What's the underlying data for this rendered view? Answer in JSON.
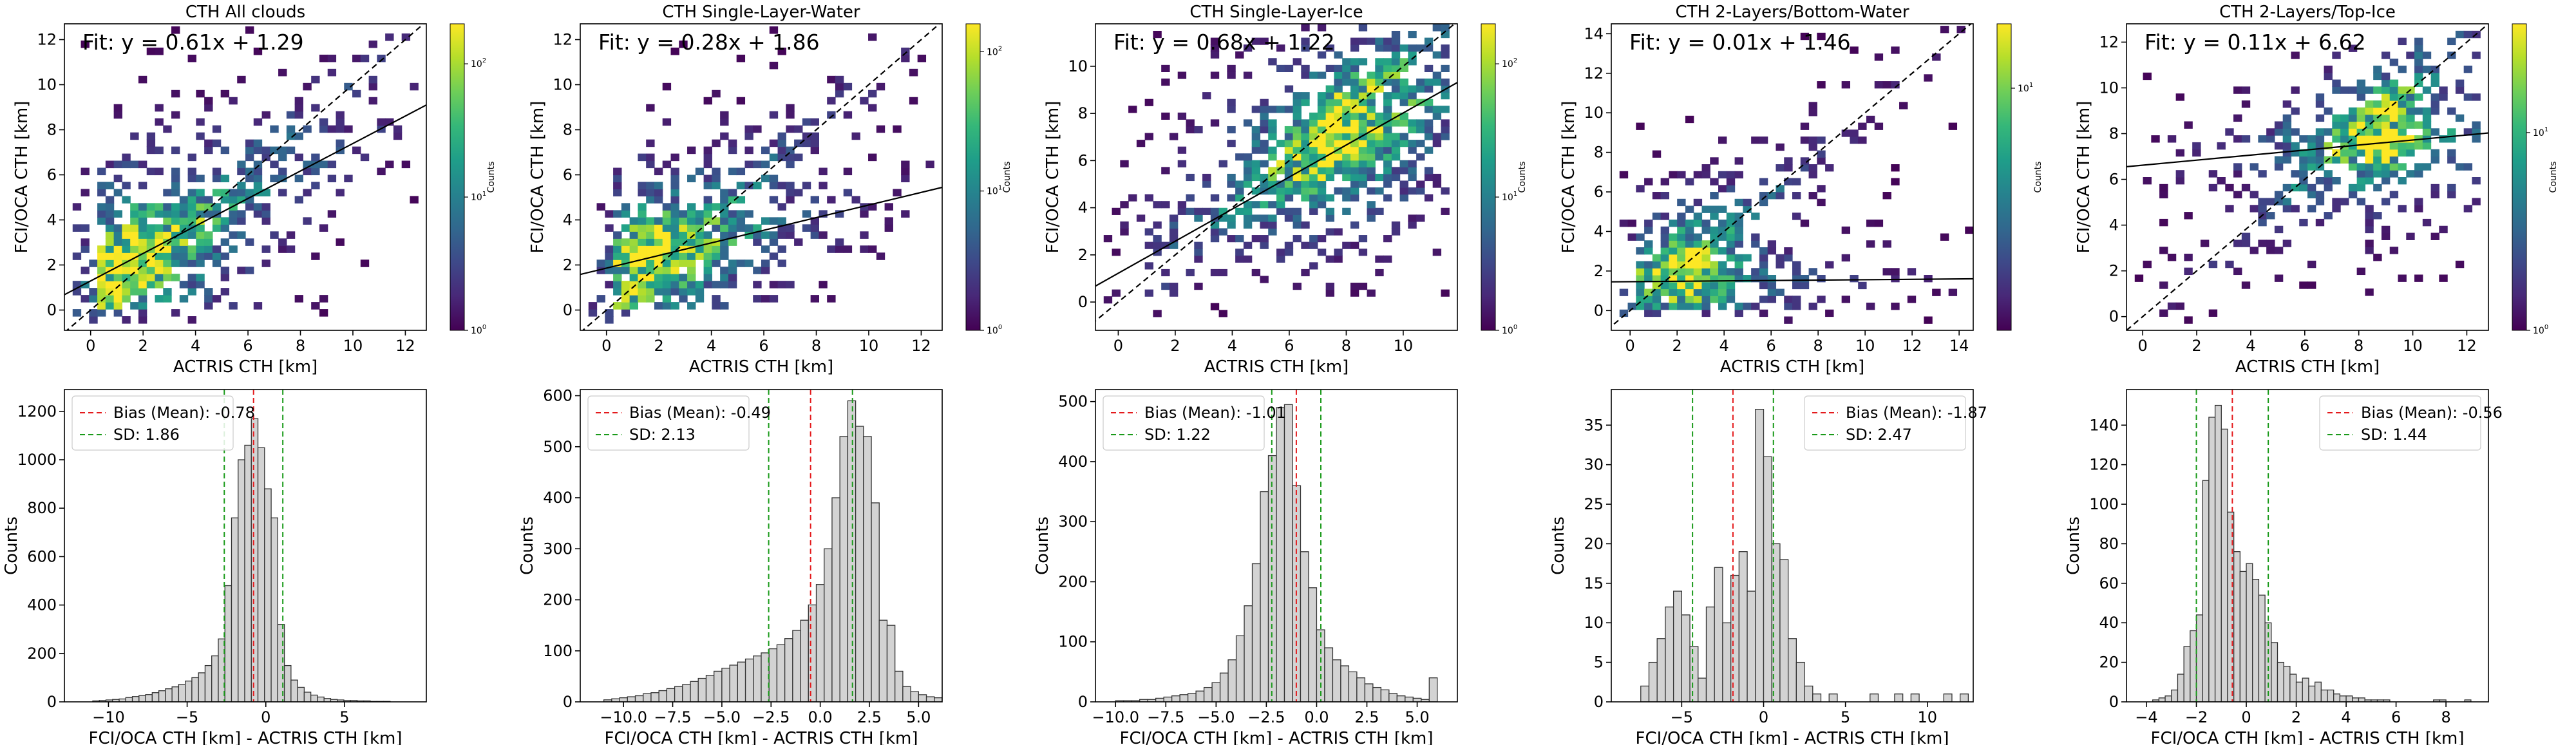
{
  "chart_data": [
    {
      "panel": "scatter",
      "type": "heatmap",
      "title": "CTH All clouds",
      "xlabel": "ACTRIS CTH [km]",
      "ylabel": "FCI/OCA CTH [km]",
      "xlim": [
        -1,
        12.8
      ],
      "ylim": [
        -0.9,
        12.7
      ],
      "xticks": [
        0,
        2,
        4,
        6,
        8,
        10,
        12
      ],
      "yticks": [
        0,
        2,
        4,
        6,
        8,
        10,
        12
      ],
      "fit": {
        "label": "Fit: y = 0.61x + 1.29",
        "slope": 0.61,
        "intercept": 1.29
      },
      "one_to_one_line": true,
      "density_cluster": {
        "x": 1.5,
        "y": 2.2,
        "spread": 2.5
      },
      "colorbar": {
        "label": "Counts",
        "scale": "log",
        "ticks": [
          [
            "10",
            "0"
          ],
          [
            "10",
            "1"
          ],
          [
            "10",
            "2"
          ]
        ],
        "decades": 2.3
      }
    },
    {
      "panel": "scatter",
      "type": "heatmap",
      "title": "CTH Single-Layer-Water",
      "xlabel": "ACTRIS CTH [km]",
      "ylabel": "FCI/OCA CTH [km]",
      "xlim": [
        -1,
        12.8
      ],
      "ylim": [
        -0.9,
        12.7
      ],
      "xticks": [
        0,
        2,
        4,
        6,
        8,
        10,
        12
      ],
      "yticks": [
        0,
        2,
        4,
        6,
        8,
        10,
        12
      ],
      "fit": {
        "label": "Fit: y = 0.28x + 1.86",
        "slope": 0.28,
        "intercept": 1.86
      },
      "one_to_one_line": true,
      "density_cluster": {
        "x": 1.8,
        "y": 2.4,
        "spread": 2.0
      },
      "colorbar": {
        "label": "Counts",
        "scale": "log",
        "ticks": [
          [
            "10",
            "0"
          ],
          [
            "10",
            "1"
          ],
          [
            "10",
            "2"
          ]
        ],
        "decades": 2.2
      }
    },
    {
      "panel": "scatter",
      "type": "heatmap",
      "title": "CTH Single-Layer-Ice",
      "xlabel": "ACTRIS CTH [km]",
      "ylabel": "FCI/OCA CTH [km]",
      "xlim": [
        -0.8,
        11.9
      ],
      "ylim": [
        -1.2,
        11.8
      ],
      "xticks": [
        0,
        2,
        4,
        6,
        8,
        10
      ],
      "yticks": [
        0,
        2,
        4,
        6,
        8,
        10
      ],
      "fit": {
        "label": "Fit: y = 0.68x + 1.22",
        "slope": 0.68,
        "intercept": 1.22
      },
      "one_to_one_line": true,
      "density_cluster": {
        "x": 7.5,
        "y": 6.8,
        "spread": 2.2
      },
      "colorbar": {
        "label": "Counts",
        "scale": "log",
        "ticks": [
          [
            "10",
            "0"
          ],
          [
            "10",
            "1"
          ],
          [
            "10",
            "2"
          ]
        ],
        "decades": 2.3
      }
    },
    {
      "panel": "scatter",
      "type": "heatmap",
      "title": "CTH 2-Layers/Bottom-Water",
      "xlabel": "ACTRIS CTH [km]",
      "ylabel": "FCI/OCA CTH [km]",
      "xlim": [
        -0.8,
        14.6
      ],
      "ylim": [
        -1.0,
        14.5
      ],
      "xticks": [
        0,
        2,
        4,
        6,
        8,
        10,
        12,
        14
      ],
      "yticks": [
        0,
        2,
        4,
        6,
        8,
        10,
        12,
        14
      ],
      "fit": {
        "label": "Fit: y = 0.01x + 1.46",
        "slope": 0.01,
        "intercept": 1.46
      },
      "one_to_one_line": true,
      "density_cluster": {
        "x": 2.0,
        "y": 1.8,
        "spread": 1.8
      },
      "colorbar": {
        "label": "Counts",
        "scale": "log",
        "ticks": [
          [
            "10",
            "1"
          ]
        ],
        "decades": 1.25
      }
    },
    {
      "panel": "scatter",
      "type": "heatmap",
      "title": "CTH 2-Layers/Top-Ice",
      "xlabel": "ACTRIS CTH [km]",
      "ylabel": "FCI/OCA CTH [km]",
      "xlim": [
        -0.6,
        12.8
      ],
      "ylim": [
        -0.6,
        12.8
      ],
      "xticks": [
        0,
        2,
        4,
        6,
        8,
        10,
        12
      ],
      "yticks": [
        0,
        2,
        4,
        6,
        8,
        10,
        12
      ],
      "fit": {
        "label": "Fit: y = 0.11x + 6.62",
        "slope": 0.11,
        "intercept": 6.62
      },
      "one_to_one_line": true,
      "density_cluster": {
        "x": 8.5,
        "y": 7.5,
        "spread": 1.5
      },
      "colorbar": {
        "label": "Counts",
        "scale": "log",
        "ticks": [
          [
            "10",
            "0"
          ],
          [
            "10",
            "1"
          ]
        ],
        "decades": 1.55
      }
    },
    {
      "panel": "histogram",
      "type": "bar",
      "xlabel": "FCI/OCA CTH [km] - ACTRIS CTH [km]",
      "ylabel": "Counts",
      "xlim": [
        -12.8,
        10.2
      ],
      "ylim": [
        0,
        1290
      ],
      "xticks": [
        -10,
        -5,
        0,
        5
      ],
      "yticks": [
        0,
        200,
        400,
        600,
        800,
        1000,
        1200
      ],
      "bias": {
        "label": "Bias (Mean): -0.78",
        "value": -0.78
      },
      "sd": {
        "label": "SD: 1.86",
        "value": 1.86
      },
      "legend_position": "upper left",
      "bin_width": 0.42,
      "bins_start": -11.0,
      "counts": [
        4,
        6,
        8,
        10,
        12,
        18,
        22,
        26,
        30,
        38,
        46,
        54,
        62,
        72,
        86,
        100,
        120,
        150,
        190,
        260,
        480,
        760,
        1000,
        1060,
        1170,
        1050,
        880,
        760,
        320,
        150,
        90,
        60,
        40,
        28,
        20,
        14,
        10,
        8,
        6,
        6,
        4,
        4,
        2,
        2,
        2
      ]
    },
    {
      "panel": "histogram",
      "type": "bar",
      "xlabel": "FCI/OCA CTH [km] - ACTRIS CTH [km]",
      "ylabel": "Counts",
      "xlim": [
        -12.2,
        6.2
      ],
      "ylim": [
        0,
        612
      ],
      "xticks": [
        -10.0,
        -7.5,
        -5.0,
        -2.5,
        0.0,
        2.5,
        5.0
      ],
      "yticks": [
        0,
        100,
        200,
        300,
        400,
        500,
        600
      ],
      "bias": {
        "label": "Bias (Mean): -0.49",
        "value": -0.49
      },
      "sd": {
        "label": "SD: 2.13",
        "value": 2.13
      },
      "legend_position": "upper left",
      "bin_width": 0.4,
      "bins_start": -11.0,
      "counts": [
        4,
        6,
        8,
        10,
        12,
        16,
        18,
        22,
        26,
        30,
        34,
        40,
        46,
        52,
        60,
        66,
        72,
        78,
        84,
        90,
        96,
        104,
        112,
        124,
        140,
        160,
        190,
        230,
        300,
        400,
        520,
        590,
        540,
        520,
        390,
        160,
        150,
        60,
        30,
        20,
        14,
        10,
        8,
        6,
        4
      ]
    },
    {
      "panel": "histogram",
      "type": "bar",
      "xlabel": "FCI/OCA CTH [km] - ACTRIS CTH [km]",
      "ylabel": "Counts",
      "xlim": [
        -11.0,
        7.0
      ],
      "ylim": [
        0,
        520
      ],
      "xticks": [
        -10.0,
        -7.5,
        -5.0,
        -2.5,
        0.0,
        2.5,
        5.0
      ],
      "yticks": [
        0,
        100,
        200,
        300,
        400,
        500
      ],
      "bias": {
        "label": "Bias (Mean): -1.01",
        "value": -1.01
      },
      "sd": {
        "label": "SD: 1.22",
        "value": 1.22
      },
      "legend_position": "upper left",
      "bin_width": 0.4,
      "bins_start": -10.0,
      "counts": [
        2,
        2,
        2,
        4,
        4,
        6,
        8,
        10,
        12,
        14,
        18,
        24,
        32,
        48,
        70,
        110,
        160,
        230,
        350,
        410,
        490,
        495,
        360,
        250,
        190,
        120,
        90,
        70,
        60,
        50,
        40,
        30,
        24,
        20,
        14,
        10,
        8,
        6,
        4,
        40
      ]
    },
    {
      "panel": "histogram",
      "type": "bar",
      "xlabel": "FCI/OCA CTH [km] - ACTRIS CTH [km]",
      "ylabel": "Counts",
      "xlim": [
        -9.3,
        12.8
      ],
      "ylim": [
        0,
        39.5
      ],
      "xticks": [
        -5,
        0,
        5,
        10
      ],
      "yticks": [
        0,
        5,
        10,
        15,
        20,
        25,
        30,
        35
      ],
      "bias": {
        "label": "Bias (Mean): -1.87",
        "value": -1.87
      },
      "sd": {
        "label": "SD: 2.47",
        "value": 2.47
      },
      "legend_position": "upper right",
      "bin_width": 0.5,
      "bins_start": -7.5,
      "counts": [
        2,
        5,
        8,
        12,
        14,
        11,
        7,
        3,
        12,
        17,
        10,
        16,
        19,
        14,
        37,
        31,
        20,
        18,
        8,
        5,
        2,
        1,
        0,
        1,
        0,
        0,
        0,
        0,
        1,
        0,
        0,
        1,
        0,
        1,
        0,
        0,
        0,
        1,
        0,
        1
      ]
    },
    {
      "panel": "histogram",
      "type": "bar",
      "xlabel": "FCI/OCA CTH [km] - ACTRIS CTH [km]",
      "ylabel": "Counts",
      "xlim": [
        -4.8,
        9.7
      ],
      "ylim": [
        0,
        158
      ],
      "xticks": [
        -4,
        -2,
        0,
        2,
        4,
        6,
        8
      ],
      "yticks": [
        0,
        20,
        40,
        60,
        80,
        100,
        120,
        140
      ],
      "bias": {
        "label": "Bias (Mean): -0.56",
        "value": -0.56
      },
      "sd": {
        "label": "SD: 1.44",
        "value": 1.44
      },
      "legend_position": "upper right",
      "bin_width": 0.25,
      "bins_start": -3.75,
      "counts": [
        1,
        2,
        3,
        6,
        14,
        28,
        36,
        44,
        112,
        144,
        150,
        138,
        96,
        76,
        66,
        70,
        62,
        54,
        40,
        30,
        20,
        18,
        14,
        10,
        12,
        8,
        10,
        6,
        6,
        4,
        3,
        3,
        2,
        2,
        1,
        1,
        1,
        1,
        0,
        0,
        0,
        0,
        0,
        0,
        0,
        1,
        1,
        0,
        0,
        0,
        1
      ]
    }
  ]
}
